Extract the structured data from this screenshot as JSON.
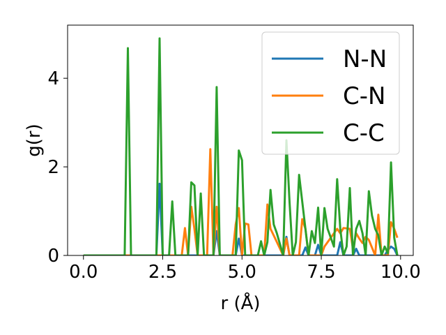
{
  "chart_data": {
    "type": "line",
    "title": "",
    "xlabel": "r (Å)",
    "ylabel": "g(r)",
    "xlim": [
      -0.5,
      10.4
    ],
    "ylim": [
      0,
      5.2
    ],
    "xticks": [
      0.0,
      2.5,
      5.0,
      7.5,
      10.0
    ],
    "xtick_labels": [
      "0.0",
      "2.5",
      "5.0",
      "7.5",
      "10.0"
    ],
    "yticks": [
      0,
      2,
      4
    ],
    "ytick_labels": [
      "0",
      "2",
      "4"
    ],
    "grid": false,
    "legend_position": "top-right",
    "series": [
      {
        "name": "N-N",
        "color": "#1f77b4",
        "x": [
          0.0,
          2.3,
          2.4,
          2.5,
          4.1,
          4.2,
          4.3,
          4.8,
          4.9,
          5.0,
          6.3,
          6.4,
          6.5,
          6.9,
          7.0,
          7.1,
          7.3,
          7.4,
          7.5,
          8.0,
          8.1,
          8.2,
          8.5,
          8.6,
          8.7,
          9.5,
          9.6,
          9.7,
          9.8,
          9.9
        ],
        "y": [
          0,
          0,
          1.62,
          0,
          0,
          0.55,
          0,
          0,
          0.38,
          0,
          0,
          0.42,
          0,
          0,
          0.18,
          0,
          0,
          0.24,
          0,
          0,
          0.3,
          0,
          0,
          0.15,
          0,
          0,
          0.12,
          0.2,
          0.15,
          0
        ]
      },
      {
        "name": "C-N",
        "color": "#ff7f0e",
        "x": [
          0.0,
          3.1,
          3.2,
          3.3,
          3.4,
          3.5,
          3.6,
          3.9,
          4.0,
          4.1,
          4.2,
          4.3,
          4.7,
          4.8,
          4.9,
          5.0,
          5.1,
          5.2,
          5.3,
          5.4,
          5.7,
          5.8,
          5.9,
          6.0,
          6.3,
          6.4,
          6.5,
          6.8,
          6.9,
          7.0,
          7.1,
          7.5,
          7.6,
          7.7,
          7.9,
          8.0,
          8.1,
          8.2,
          8.4,
          8.5,
          8.6,
          8.7,
          8.8,
          8.9,
          9.0,
          9.2,
          9.3,
          9.4,
          9.6,
          9.7,
          9.8,
          9.9
        ],
        "y": [
          0,
          0,
          0.62,
          0,
          1.1,
          0.6,
          0,
          0,
          2.4,
          0,
          1.1,
          0,
          0,
          0.7,
          1.07,
          0,
          0.72,
          0.7,
          0,
          0,
          0,
          1.15,
          0.6,
          0.45,
          0,
          0.38,
          0,
          0,
          0.82,
          0.6,
          0,
          0,
          0.2,
          0.3,
          0.5,
          0.6,
          0.5,
          0.62,
          0.6,
          0.15,
          0.5,
          0.38,
          0.28,
          0.42,
          0.35,
          0,
          0.92,
          0,
          0,
          0.75,
          0.6,
          0.4
        ]
      },
      {
        "name": "C-C",
        "color": "#2ca02c",
        "x": [
          0.0,
          1.3,
          1.4,
          1.5,
          2.3,
          2.4,
          2.5,
          2.7,
          2.8,
          2.9,
          3.3,
          3.4,
          3.5,
          3.6,
          3.7,
          3.8,
          4.1,
          4.2,
          4.3,
          4.8,
          4.9,
          5.0,
          5.1,
          5.5,
          5.6,
          5.7,
          5.8,
          5.9,
          6.0,
          6.1,
          6.3,
          6.4,
          6.5,
          6.6,
          6.7,
          6.8,
          7.0,
          7.1,
          7.2,
          7.3,
          7.4,
          7.5,
          7.6,
          7.7,
          7.8,
          7.9,
          8.0,
          8.1,
          8.2,
          8.3,
          8.4,
          8.5,
          8.6,
          8.7,
          8.8,
          8.9,
          9.0,
          9.1,
          9.2,
          9.3,
          9.4,
          9.5,
          9.6,
          9.7,
          9.8,
          9.9
        ],
        "y": [
          0,
          0,
          4.68,
          0,
          0,
          4.9,
          0,
          0,
          1.22,
          0,
          0,
          1.65,
          1.58,
          0,
          1.4,
          0,
          0,
          3.8,
          0,
          0,
          2.37,
          2.15,
          0,
          0,
          0.32,
          0,
          0.3,
          1.48,
          0.7,
          0.5,
          0,
          2.6,
          1.2,
          0,
          0.3,
          1.82,
          0.6,
          0,
          0.55,
          0.28,
          1.08,
          0,
          1.07,
          0.6,
          0.4,
          0.2,
          1.72,
          0.6,
          0,
          0.2,
          1.52,
          0,
          0.6,
          0.78,
          0.5,
          0,
          1.45,
          0.9,
          0.6,
          0.45,
          0,
          0.2,
          0.05,
          2.1,
          0.4,
          0
        ]
      }
    ]
  }
}
